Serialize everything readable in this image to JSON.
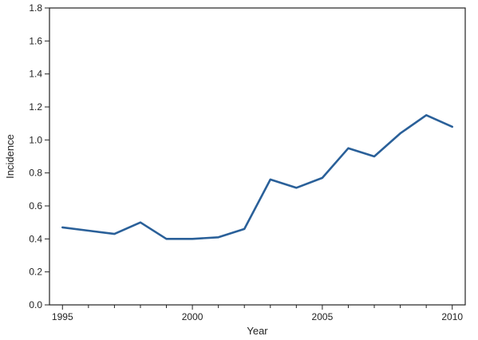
{
  "chart_data": {
    "type": "line",
    "title": "",
    "xlabel": "Year",
    "ylabel": "Incidence",
    "xlim": [
      1994.5,
      2010.5
    ],
    "ylim": [
      0,
      1.8
    ],
    "x_ticks": [
      1995,
      2000,
      2005,
      2010
    ],
    "x_tick_labels": [
      "1995",
      "2000",
      "2005",
      "2010"
    ],
    "y_ticks": [
      0,
      0.2,
      0.4,
      0.6,
      0.8,
      1.0,
      1.2,
      1.4,
      1.6,
      1.8
    ],
    "y_tick_labels": [
      "0.0",
      "0.2",
      "0.4",
      "0.6",
      "0.8",
      "1.0",
      "1.2",
      "1.4",
      "1.6",
      "1.8"
    ],
    "grid": false,
    "series": [
      {
        "color": "#2a6099",
        "x": [
          1995,
          1996,
          1997,
          1998,
          1999,
          2000,
          2001,
          2002,
          2003,
          2004,
          2005,
          2006,
          2007,
          2008,
          2009,
          2010
        ],
        "y": [
          0.47,
          0.45,
          0.43,
          0.5,
          0.4,
          0.4,
          0.41,
          0.46,
          0.76,
          0.71,
          0.77,
          0.95,
          0.9,
          1.04,
          1.15,
          1.08
        ]
      }
    ]
  }
}
